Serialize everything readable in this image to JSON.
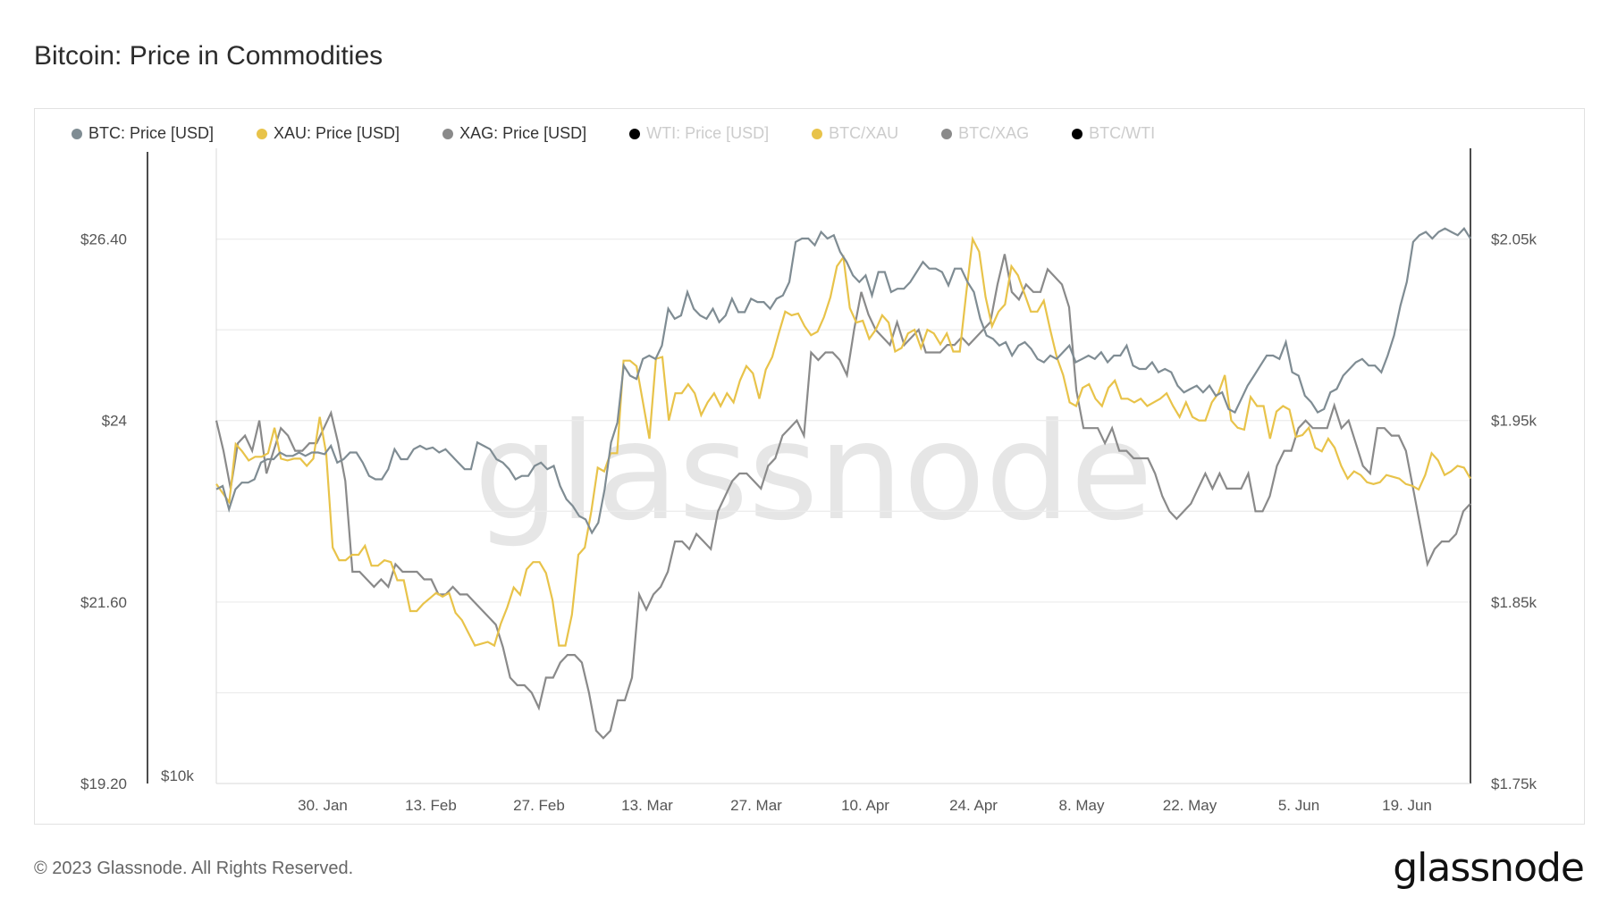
{
  "title": "Bitcoin: Price in Commodities",
  "footer": "© 2023 Glassnode. All Rights Reserved.",
  "brand": "glassnode",
  "watermark": "glassnode",
  "legend": [
    {
      "label": "BTC: Price [USD]",
      "color": "#7f8c93",
      "active": true
    },
    {
      "label": "XAU: Price [USD]",
      "color": "#e8c34a",
      "active": true
    },
    {
      "label": "XAG: Price [USD]",
      "color": "#8a8a8a",
      "active": true
    },
    {
      "label": "WTI: Price [USD]",
      "color": "#000000",
      "active": false
    },
    {
      "label": "BTC/XAU",
      "color": "#e8c34a",
      "active": false
    },
    {
      "label": "BTC/XAG",
      "color": "#8a8a8a",
      "active": false
    },
    {
      "label": "BTC/WTI",
      "color": "#000000",
      "active": false
    }
  ],
  "chart_data": {
    "type": "line",
    "title": "Bitcoin: Price in Commodities",
    "x_ticks": [
      "30. Jan",
      "13. Feb",
      "27. Feb",
      "13. Mar",
      "27. Mar",
      "10. Apr",
      "24. Apr",
      "8. May",
      "22. May",
      "5. Jun",
      "19. Jun"
    ],
    "left_axis_xag": {
      "ticks": [
        "$26.40",
        "$24",
        "$21.60",
        "$19.20"
      ],
      "range": [
        19.2,
        27.6
      ]
    },
    "left_axis_btc": {
      "ticks": [
        "$10k"
      ]
    },
    "right_axis_xau": {
      "ticks": [
        "$2.05k",
        "$1.95k",
        "$1.85k",
        "$1.75k"
      ],
      "range": [
        1750,
        2100
      ]
    },
    "grid": true,
    "legend_position": "top",
    "series": [
      {
        "name": "BTC: Price [USD]",
        "color": "#7f8c93",
        "values": [
          22800,
          22900,
          22200,
          22800,
          23000,
          23000,
          23100,
          23600,
          23700,
          23700,
          23900,
          23800,
          23800,
          23900,
          23800,
          23900,
          23900,
          23850,
          24100,
          23600,
          23700,
          23900,
          23900,
          23600,
          23200,
          23100,
          23100,
          23400,
          24000,
          23700,
          23700,
          24000,
          24100,
          24000,
          24050,
          23900,
          24000,
          23800,
          23600,
          23400,
          23400,
          24200,
          24100,
          24000,
          23700,
          23600,
          23400,
          23100,
          23200,
          23200,
          23500,
          23600,
          23400,
          23500,
          22900,
          22500,
          22300,
          22000,
          21900,
          21500,
          21800,
          22800,
          24200,
          24800,
          26500,
          26200,
          26100,
          26700,
          26800,
          26700,
          27100,
          28200,
          27900,
          28000,
          28700,
          28200,
          28000,
          27900,
          28200,
          27800,
          28000,
          28500,
          28100,
          28100,
          28500,
          28400,
          28400,
          28200,
          28500,
          28600,
          29000,
          30200,
          30300,
          30300,
          30100,
          30500,
          30300,
          30400,
          29900,
          29600,
          29200,
          29000,
          29200,
          28600,
          29300,
          29300,
          28700,
          28800,
          28800,
          29000,
          29300,
          29600,
          29400,
          29400,
          29300,
          28900,
          29400,
          29400,
          29000,
          28700,
          27900,
          27400,
          27300,
          27100,
          27200,
          26800,
          27100,
          27200,
          27000,
          26700,
          26600,
          26800,
          26700,
          26900,
          27100,
          26600,
          26700,
          26800,
          26700,
          26900,
          26600,
          26800,
          26800,
          27100,
          26500,
          26400,
          26400,
          26600,
          26300,
          26400,
          26300,
          25900,
          25700,
          25800,
          25900,
          25700,
          25900,
          25600,
          25700,
          25200,
          25100,
          25500,
          25900,
          26200,
          26500,
          26800,
          26800,
          26700,
          27200,
          26300,
          26200,
          25600,
          25400,
          25100,
          25200,
          25700,
          25800,
          26200,
          26400,
          26600,
          26700,
          26500,
          26500,
          26300,
          26800,
          27400,
          28300,
          29000,
          30200,
          30400,
          30500,
          30300,
          30500,
          30600,
          30500,
          30400,
          30600,
          30300
        ],
        "note": "BTC series plotted on hidden left axis scale matched to XAG axis position"
      },
      {
        "name": "XAU: Price [USD]",
        "color": "#e8c34a",
        "values": [
          1915,
          1910,
          1905,
          1937,
          1933,
          1928,
          1930,
          1930,
          1932,
          1946,
          1929,
          1928,
          1929,
          1929,
          1925,
          1929,
          1952,
          1932,
          1880,
          1873,
          1873,
          1876,
          1876,
          1881,
          1870,
          1870,
          1873,
          1872,
          1862,
          1862,
          1845,
          1845,
          1849,
          1852,
          1855,
          1853,
          1855,
          1844,
          1840,
          1833,
          1826,
          1827,
          1828,
          1826,
          1838,
          1847,
          1858,
          1854,
          1868,
          1872,
          1872,
          1866,
          1851,
          1826,
          1826,
          1843,
          1876,
          1880,
          1900,
          1924,
          1922,
          1932,
          1932,
          1983,
          1983,
          1980,
          1960,
          1940,
          1984,
          1985,
          1950,
          1965,
          1965,
          1970,
          1965,
          1953,
          1960,
          1965,
          1958,
          1965,
          1960,
          1972,
          1980,
          1976,
          1962,
          1978,
          1985,
          1998,
          2010,
          2008,
          2009,
          2002,
          1997,
          1999,
          2007,
          2018,
          2035,
          2040,
          2012,
          2004,
          2005,
          1995,
          2000,
          2008,
          2004,
          1988,
          1990,
          1998,
          2000,
          1990,
          2000,
          1998,
          1992,
          1998,
          1988,
          1988,
          2020,
          2050,
          2043,
          2018,
          2002,
          2010,
          2014,
          2035,
          2030,
          2020,
          2010,
          2010,
          2016,
          2000,
          1985,
          1975,
          1960,
          1958,
          1968,
          1970,
          1962,
          1958,
          1968,
          1972,
          1962,
          1962,
          1960,
          1962,
          1958,
          1960,
          1962,
          1965,
          1958,
          1952,
          1960,
          1952,
          1950,
          1950,
          1960,
          1965,
          1975,
          1950,
          1946,
          1945,
          1963,
          1958,
          1958,
          1940,
          1955,
          1958,
          1956,
          1941,
          1942,
          1946,
          1935,
          1933,
          1940,
          1935,
          1925,
          1918,
          1922,
          1920,
          1916,
          1915,
          1916,
          1920,
          1919,
          1918,
          1915,
          1914,
          1912,
          1920,
          1932,
          1928,
          1920,
          1922,
          1925,
          1924,
          1918
        ]
      },
      {
        "name": "XAG: Price [USD]",
        "color": "#8a8a8a",
        "values": [
          24.0,
          23.6,
          23.1,
          23.7,
          23.8,
          23.6,
          24.0,
          23.3,
          23.6,
          23.9,
          23.8,
          23.6,
          23.6,
          23.7,
          23.7,
          23.9,
          24.1,
          23.7,
          23.2,
          22.0,
          22.0,
          21.9,
          21.8,
          21.9,
          21.8,
          22.1,
          22.0,
          22.0,
          22.0,
          21.9,
          21.9,
          21.7,
          21.7,
          21.8,
          21.7,
          21.7,
          21.6,
          21.5,
          21.4,
          21.3,
          21.0,
          20.6,
          20.5,
          20.5,
          20.4,
          20.2,
          20.6,
          20.6,
          20.8,
          20.9,
          20.9,
          20.8,
          20.4,
          19.9,
          19.8,
          19.9,
          20.3,
          20.3,
          20.6,
          21.7,
          21.5,
          21.7,
          21.8,
          22.0,
          22.4,
          22.4,
          22.3,
          22.5,
          22.4,
          22.3,
          22.8,
          23.0,
          23.2,
          23.3,
          23.3,
          23.2,
          23.1,
          23.4,
          23.5,
          23.8,
          23.9,
          24.0,
          23.8,
          24.9,
          24.8,
          24.9,
          24.9,
          24.8,
          24.6,
          25.2,
          25.7,
          25.4,
          25.2,
          25.1,
          25.0,
          25.3,
          25.0,
          25.1,
          25.2,
          24.9,
          24.9,
          24.9,
          25.0,
          25.0,
          25.1,
          25.0,
          25.1,
          25.2,
          25.3,
          25.8,
          26.2,
          25.7,
          25.6,
          25.8,
          25.7,
          25.7,
          26.0,
          25.9,
          25.8,
          25.5,
          24.4,
          23.9,
          23.9,
          23.9,
          23.7,
          23.9,
          23.6,
          23.6,
          23.5,
          23.5,
          23.5,
          23.3,
          23.0,
          22.8,
          22.7,
          22.8,
          22.9,
          23.1,
          23.3,
          23.1,
          23.3,
          23.1,
          23.1,
          23.1,
          23.3,
          22.8,
          22.8,
          23.0,
          23.4,
          23.6,
          23.6,
          23.9,
          24.0,
          23.9,
          23.9,
          23.9,
          24.2,
          23.9,
          24.0,
          23.7,
          23.4,
          23.3,
          23.9,
          23.9,
          23.8,
          23.8,
          23.6,
          23.1,
          22.6,
          22.1,
          22.3,
          22.4,
          22.4,
          22.5,
          22.8,
          22.9
        ]
      }
    ]
  }
}
